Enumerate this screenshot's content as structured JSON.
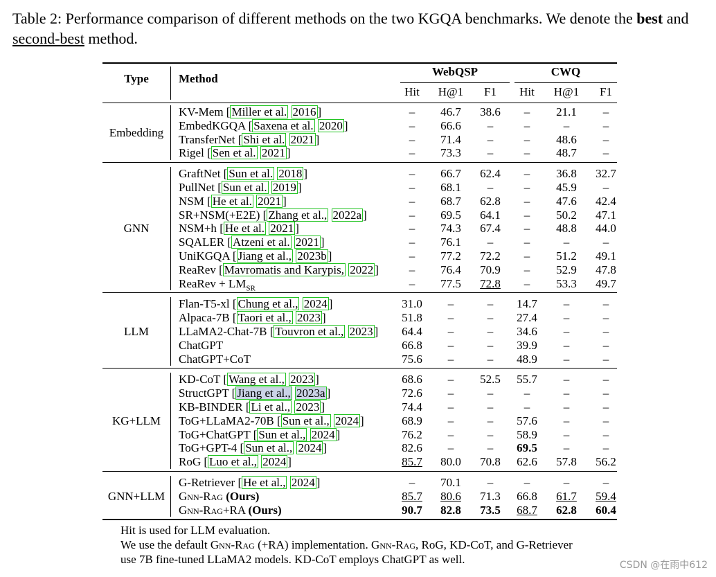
{
  "caption": {
    "part1": "Table 2: Performance comparison of different methods on the two KGQA benchmarks. We denote the ",
    "best": "best",
    "and": " and ",
    "second_best": "second-best",
    "part2": " method."
  },
  "headers": {
    "type": "Type",
    "method": "Method",
    "webqsp": "WebQSP",
    "cwq": "CWQ",
    "cols": [
      "Hit",
      "H@1",
      "F1",
      "Hit",
      "H@1",
      "F1"
    ]
  },
  "groups": [
    {
      "type": "Embedding",
      "rows": [
        {
          "method": "KV-Mem",
          "cites": [
            "Miller et al.",
            "2016"
          ],
          "vals": [
            "–",
            "46.7",
            "38.6",
            "–",
            "21.1",
            "–"
          ]
        },
        {
          "method": "EmbedKGQA",
          "cites": [
            "Saxena et al.",
            "2020"
          ],
          "vals": [
            "–",
            "66.6",
            "–",
            "–",
            "–",
            "–"
          ]
        },
        {
          "method": "TransferNet",
          "cites": [
            "Shi et al.",
            "2021"
          ],
          "vals": [
            "–",
            "71.4",
            "–",
            "–",
            "48.6",
            "–"
          ]
        },
        {
          "method": "Rigel",
          "cites": [
            "Sen et al.",
            "2021"
          ],
          "vals": [
            "–",
            "73.3",
            "–",
            "–",
            "48.7",
            "–"
          ]
        }
      ]
    },
    {
      "type": "GNN",
      "rows": [
        {
          "method": "GraftNet",
          "cites": [
            "Sun et al.",
            "2018"
          ],
          "vals": [
            "–",
            "66.7",
            "62.4",
            "–",
            "36.8",
            "32.7"
          ]
        },
        {
          "method": "PullNet",
          "cites": [
            "Sun et al.",
            "2019"
          ],
          "vals": [
            "–",
            "68.1",
            "–",
            "–",
            "45.9",
            "–"
          ]
        },
        {
          "method": "NSM",
          "cites": [
            "He et al.",
            "2021"
          ],
          "vals": [
            "–",
            "68.7",
            "62.8",
            "–",
            "47.6",
            "42.4"
          ]
        },
        {
          "method": "SR+NSM(+E2E)",
          "cites": [
            "Zhang et al.,",
            "2022a"
          ],
          "vals": [
            "–",
            "69.5",
            "64.1",
            "–",
            "50.2",
            "47.1"
          ]
        },
        {
          "method": "NSM+h",
          "cites": [
            "He et al.",
            "2021"
          ],
          "vals": [
            "–",
            "74.3",
            "67.4",
            "–",
            "48.8",
            "44.0"
          ]
        },
        {
          "method": "SQALER",
          "cites": [
            "Atzeni et al.",
            "2021"
          ],
          "vals": [
            "–",
            "76.1",
            "–",
            "–",
            "–",
            "–"
          ]
        },
        {
          "method": "UniKGQA",
          "cites": [
            "Jiang et al.,",
            "2023b"
          ],
          "vals": [
            "–",
            "77.2",
            "72.2",
            "–",
            "51.2",
            "49.1"
          ]
        },
        {
          "method": "ReaRev",
          "cites": [
            "Mavromatis and Karypis,",
            "2022"
          ],
          "vals": [
            "–",
            "76.4",
            "70.9",
            "–",
            "52.9",
            "47.8"
          ]
        },
        {
          "method": "ReaRev + LM",
          "sub": "SR",
          "cites": [],
          "vals": [
            "–",
            "77.5",
            "72.8",
            "–",
            "53.3",
            "49.7"
          ],
          "underline": [
            2
          ]
        }
      ]
    },
    {
      "type": "LLM",
      "rows": [
        {
          "method": "Flan-T5-xl",
          "cites": [
            "Chung et al.,",
            "2024"
          ],
          "vals": [
            "31.0",
            "–",
            "–",
            "14.7",
            "–",
            "–"
          ]
        },
        {
          "method": "Alpaca-7B",
          "cites": [
            "Taori et al.,",
            "2023"
          ],
          "vals": [
            "51.8",
            "–",
            "–",
            "27.4",
            "–",
            "–"
          ]
        },
        {
          "method": "LLaMA2-Chat-7B",
          "cites": [
            "Touvron et al.,",
            "2023"
          ],
          "vals": [
            "64.4",
            "–",
            "–",
            "34.6",
            "–",
            "–"
          ]
        },
        {
          "method": "ChatGPT",
          "cites": [],
          "vals": [
            "66.8",
            "–",
            "–",
            "39.9",
            "–",
            "–"
          ]
        },
        {
          "method": "ChatGPT+CoT",
          "cites": [],
          "vals": [
            "75.6",
            "–",
            "–",
            "48.9",
            "–",
            "–"
          ]
        }
      ]
    },
    {
      "type": "KG+LLM",
      "rows": [
        {
          "method": "KD-CoT",
          "cites": [
            "Wang et al.,",
            "2023"
          ],
          "vals": [
            "68.6",
            "–",
            "52.5",
            "55.7",
            "–",
            "–"
          ]
        },
        {
          "method": "StructGPT",
          "cites": [
            "Jiang et al.,",
            "2023a"
          ],
          "vals": [
            "72.6",
            "–",
            "–",
            "–",
            "–",
            "–"
          ],
          "highlight": true
        },
        {
          "method": "KB-BINDER",
          "cites": [
            "Li et al.,",
            "2023"
          ],
          "vals": [
            "74.4",
            "–",
            "–",
            "–",
            "–",
            "–"
          ]
        },
        {
          "method": "ToG+LLaMA2-70B",
          "cites": [
            "Sun et al.,",
            "2024"
          ],
          "vals": [
            "68.9",
            "–",
            "–",
            "57.6",
            "–",
            "–"
          ]
        },
        {
          "method": "ToG+ChatGPT",
          "cites": [
            "Sun et al.,",
            "2024"
          ],
          "vals": [
            "76.2",
            "–",
            "–",
            "58.9",
            "–",
            "–"
          ]
        },
        {
          "method": "ToG+GPT-4",
          "cites": [
            "Sun et al.,",
            "2024"
          ],
          "vals": [
            "82.6",
            "–",
            "–",
            "69.5",
            "–",
            "–"
          ],
          "bold": [
            3
          ]
        },
        {
          "method": "RoG",
          "cites": [
            "Luo et al.,",
            "2024"
          ],
          "vals": [
            "85.7",
            "80.0",
            "70.8",
            "62.6",
            "57.8",
            "56.2"
          ],
          "underline": [
            0
          ]
        }
      ]
    },
    {
      "type": "GNN+LLM",
      "rows": [
        {
          "method": "G-Retriever",
          "cites": [
            "He et al.,",
            "2024"
          ],
          "vals": [
            "–",
            "70.1",
            "–",
            "–",
            "–",
            "–"
          ]
        },
        {
          "method": "GNN-RAG (Ours)",
          "cites": [],
          "vals": [
            "85.7",
            "80.6",
            "71.3",
            "66.8",
            "61.7",
            "59.4"
          ],
          "underline": [
            0,
            1,
            4,
            5
          ]
        },
        {
          "method": "GNN-RAG+RA (Ours)",
          "cites": [],
          "vals": [
            "90.7",
            "82.8",
            "73.5",
            "68.7",
            "62.8",
            "60.4"
          ],
          "bold": [
            0,
            1,
            2,
            4,
            5
          ],
          "underline": [
            3
          ]
        }
      ]
    }
  ],
  "notes": [
    "Hit is used for LLM evaluation.",
    "We use the default GNN-RAG (+RA) implementation. GNN-RAG, RoG, KD-CoT, and G-Retriever",
    "use 7B fine-tuned LLaMA2 models. KD-CoT employs ChatGPT as well."
  ],
  "watermark": "CSDN @在雨中612"
}
